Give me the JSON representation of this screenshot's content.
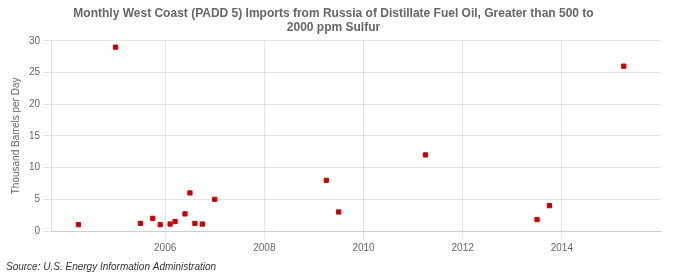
{
  "chart_data": {
    "type": "scatter",
    "title": "Monthly West Coast (PADD 5) Imports from Russia of Distillate Fuel Oil, Greater than 500 to\n2000 ppm Sulfur",
    "ylabel": "Thousand Barrels per Day",
    "source": "Source: U.S. Energy Information Administration",
    "x": [
      2004.25,
      2005.0,
      2005.5,
      2005.75,
      2005.9,
      2006.1,
      2006.2,
      2006.4,
      2006.5,
      2006.6,
      2006.75,
      2007.0,
      2009.25,
      2009.5,
      2011.25,
      2013.5,
      2013.75,
      2015.25
    ],
    "values": [
      1.0,
      29.0,
      1.2,
      2.0,
      1.0,
      1.1,
      1.5,
      2.7,
      6.0,
      1.2,
      1.1,
      5.0,
      8.0,
      3.0,
      12.0,
      1.8,
      4.0,
      26.0
    ],
    "color": "#cc0000",
    "marker": "square",
    "xlim": [
      2003.7,
      2016.0
    ],
    "xticks": [
      2006,
      2008,
      2010,
      2012,
      2014
    ],
    "ylim": [
      0,
      30
    ],
    "yticks": [
      0,
      5,
      10,
      15,
      20,
      25,
      30
    ],
    "grid": true
  }
}
